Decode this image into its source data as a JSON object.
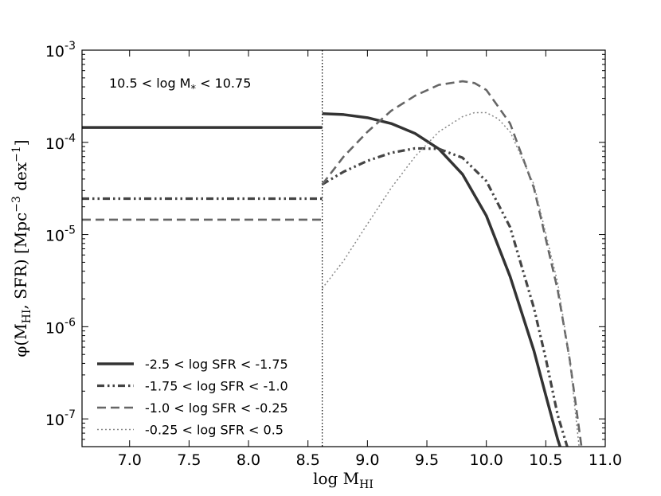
{
  "chart_data": {
    "type": "line",
    "title": "",
    "annotation": {
      "prefix": "10.5  < log M",
      "sub": "*",
      "suffix": " < 10.75"
    },
    "xlabel": {
      "main": "log M",
      "sub": "HI"
    },
    "ylabel": {
      "p1": "φ(M",
      "sub": "HI",
      "p2": ", SFR) [Mpc",
      "sup": "−3",
      "p3": " dex",
      "sup2": "−1",
      "p4": "]"
    },
    "xlim": [
      6.6,
      11.0
    ],
    "ylim": [
      5e-08,
      0.001
    ],
    "yscale": "log",
    "xticks": [
      7.0,
      7.5,
      8.0,
      8.5,
      9.0,
      9.5,
      10.0,
      10.5,
      11.0
    ],
    "xtick_labels": [
      "7.0",
      "7.5",
      "8.0",
      "8.5",
      "9.0",
      "9.5",
      "10.0",
      "10.5",
      "11.0"
    ],
    "yticks": [
      {
        "value": 1e-07,
        "base": "10",
        "exp": "-7"
      },
      {
        "value": 1e-06,
        "base": "10",
        "exp": "-6"
      },
      {
        "value": 1e-05,
        "base": "10",
        "exp": "-5"
      },
      {
        "value": 0.0001,
        "base": "10",
        "exp": "-4"
      },
      {
        "value": 0.001,
        "base": "10",
        "exp": "-3"
      }
    ],
    "vline_x": 8.62,
    "legend_position": "lower-left",
    "series": [
      {
        "name": "-2.5 < log SFR < -1.75",
        "color": "#333333",
        "style": "solid",
        "width": 3.5,
        "flat": {
          "x": [
            6.6,
            8.62
          ],
          "y": 0.000145
        },
        "x": [
          8.62,
          8.8,
          9.0,
          9.2,
          9.4,
          9.6,
          9.8,
          10.0,
          10.2,
          10.4,
          10.5,
          10.6,
          10.62
        ],
        "y": [
          0.000205,
          0.0002,
          0.000185,
          0.00016,
          0.000125,
          8.5e-05,
          4.5e-05,
          1.6e-05,
          3.5e-06,
          5.5e-07,
          1.8e-07,
          6e-08,
          5e-08
        ]
      },
      {
        "name": "-1.75 < log SFR < -1.0",
        "color": "#444444",
        "style": "dashdotdot",
        "width": 3.2,
        "flat": {
          "x": [
            6.6,
            8.62
          ],
          "y": 2.45e-05
        },
        "x": [
          8.62,
          8.8,
          9.0,
          9.2,
          9.4,
          9.6,
          9.8,
          10.0,
          10.2,
          10.4,
          10.5,
          10.6,
          10.68
        ],
        "y": [
          3.5e-05,
          4.8e-05,
          6.3e-05,
          7.7e-05,
          8.6e-05,
          8.5e-05,
          6.8e-05,
          3.8e-05,
          1.2e-05,
          1.6e-06,
          4.5e-07,
          1.1e-07,
          5e-08
        ]
      },
      {
        "name": "-1.0 < log SFR < -0.25",
        "color": "#666666",
        "style": "dashed",
        "width": 2.6,
        "flat": {
          "x": [
            6.6,
            8.62
          ],
          "y": 1.45e-05
        },
        "x": [
          8.62,
          8.8,
          9.0,
          9.2,
          9.4,
          9.6,
          9.8,
          9.9,
          10.0,
          10.2,
          10.4,
          10.6,
          10.7,
          10.8
        ],
        "y": [
          3.5e-05,
          7e-05,
          0.00013,
          0.00022,
          0.00032,
          0.00042,
          0.00046,
          0.00044,
          0.00037,
          0.00016,
          3.2e-05,
          2.5e-06,
          4.5e-07,
          5e-08
        ]
      },
      {
        "name": "-0.25 < log SFR < 0.5",
        "color": "#888888",
        "style": "dotted",
        "width": 1.5,
        "flat": null,
        "x": [
          8.62,
          8.8,
          9.0,
          9.2,
          9.4,
          9.6,
          9.8,
          9.9,
          10.0,
          10.1,
          10.2,
          10.4,
          10.6,
          10.7,
          10.78
        ],
        "y": [
          2.6e-06,
          5.2e-06,
          1.3e-05,
          3.2e-05,
          7e-05,
          0.00013,
          0.00019,
          0.00021,
          0.00021,
          0.00018,
          0.00013,
          3.5e-05,
          3e-06,
          4.5e-07,
          5e-08
        ]
      }
    ]
  }
}
